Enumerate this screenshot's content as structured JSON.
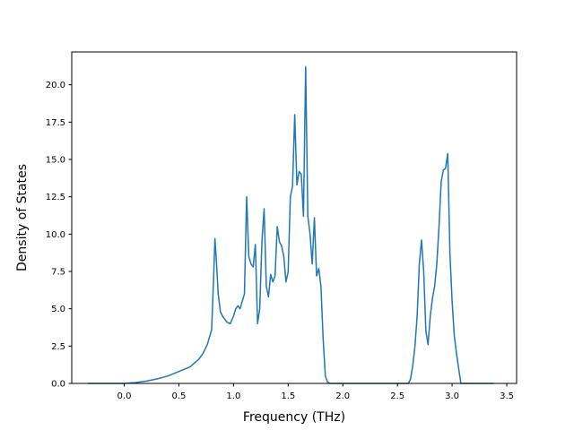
{
  "chart_data": {
    "type": "line",
    "title": "",
    "xlabel": "Frequency (THz)",
    "ylabel": "Density of States",
    "xlim": [
      -0.48,
      3.59
    ],
    "ylim": [
      0,
      22.2
    ],
    "xticks": [
      0.0,
      0.5,
      1.0,
      1.5,
      2.0,
      2.5,
      3.0,
      3.5
    ],
    "xtick_labels": [
      "0.0",
      "0.5",
      "1.0",
      "1.5",
      "2.0",
      "2.5",
      "3.0",
      "3.5"
    ],
    "yticks": [
      0.0,
      2.5,
      5.0,
      7.5,
      10.0,
      12.5,
      15.0,
      17.5,
      20.0
    ],
    "ytick_labels": [
      "0.0",
      "2.5",
      "5.0",
      "7.5",
      "10.0",
      "12.5",
      "15.0",
      "17.5",
      "20.0"
    ],
    "grid": false,
    "colors": {
      "line": "#1f77b4",
      "axes": "#000000"
    },
    "series": [
      {
        "x": [
          -0.33,
          0.0,
          0.1,
          0.2,
          0.3,
          0.4,
          0.5,
          0.6,
          0.68,
          0.72,
          0.76,
          0.8,
          0.82,
          0.83,
          0.845,
          0.86,
          0.88,
          0.9,
          0.94,
          0.97,
          1.0,
          1.02,
          1.04,
          1.06,
          1.08,
          1.1,
          1.12,
          1.14,
          1.16,
          1.18,
          1.2,
          1.22,
          1.24,
          1.26,
          1.28,
          1.3,
          1.32,
          1.34,
          1.36,
          1.38,
          1.4,
          1.42,
          1.44,
          1.46,
          1.48,
          1.5,
          1.52,
          1.54,
          1.56,
          1.58,
          1.6,
          1.62,
          1.64,
          1.66,
          1.68,
          1.7,
          1.72,
          1.74,
          1.76,
          1.78,
          1.8,
          1.82,
          1.84,
          1.86,
          1.88,
          2.0,
          2.3,
          2.6,
          2.62,
          2.64,
          2.66,
          2.68,
          2.7,
          2.72,
          2.74,
          2.76,
          2.78,
          2.8,
          2.82,
          2.84,
          2.86,
          2.88,
          2.9,
          2.92,
          2.94,
          2.96,
          2.98,
          3.0,
          3.02,
          3.04,
          3.06,
          3.08,
          3.2,
          3.38
        ],
        "y": [
          0.0,
          0.0,
          0.05,
          0.15,
          0.3,
          0.5,
          0.8,
          1.1,
          1.6,
          2.0,
          2.6,
          3.6,
          7.5,
          9.7,
          8.0,
          6.0,
          4.8,
          4.5,
          4.1,
          4.0,
          4.5,
          5.0,
          5.2,
          5.0,
          5.5,
          6.0,
          12.5,
          8.5,
          8.0,
          7.8,
          9.3,
          4.0,
          5.0,
          9.5,
          11.7,
          6.5,
          5.8,
          7.3,
          6.8,
          7.2,
          10.5,
          9.5,
          9.2,
          8.5,
          6.8,
          7.5,
          12.5,
          13.2,
          18.0,
          13.3,
          14.2,
          14.0,
          11.2,
          21.2,
          11.2,
          10.0,
          8.0,
          11.1,
          7.2,
          7.7,
          6.5,
          3.0,
          0.5,
          0.1,
          0.0,
          0.0,
          0.0,
          0.0,
          0.3,
          1.2,
          2.5,
          4.5,
          8.0,
          9.6,
          7.5,
          3.5,
          2.6,
          4.5,
          5.7,
          6.5,
          8.0,
          10.5,
          13.5,
          14.3,
          14.4,
          15.4,
          8.7,
          5.5,
          3.2,
          2.0,
          1.0,
          0.0,
          0.0,
          0.0
        ]
      }
    ]
  }
}
